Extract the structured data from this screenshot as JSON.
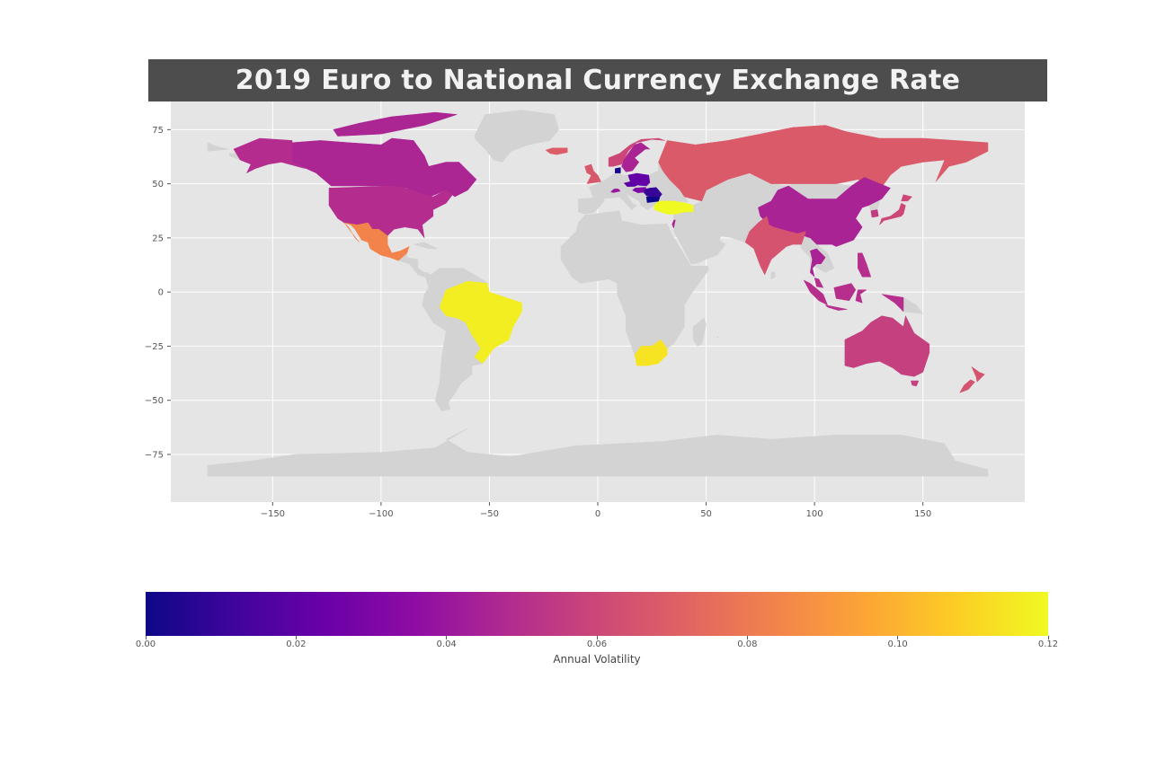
{
  "title": "2019 Euro to National Currency Exchange Rate",
  "colors": {
    "panel_bg": "#e5e5e5",
    "land_no_data": "#d3d3d3",
    "grid": "#ffffff",
    "title_bg": "#4d4d4d",
    "title_fg": "#f2f2f2"
  },
  "map": {
    "projection": "plate-carree",
    "xlim": [
      -197,
      197
    ],
    "ylim": [
      -97,
      88
    ],
    "xticks": [
      -150,
      -100,
      -50,
      0,
      50,
      100,
      150
    ],
    "yticks": [
      75,
      50,
      25,
      0,
      -25,
      -50,
      -75
    ],
    "xtick_labels": [
      "−150",
      "−100",
      "−50",
      "0",
      "50",
      "100",
      "150"
    ],
    "ytick_labels": [
      "75",
      "50",
      "25",
      "0",
      "−25",
      "−50",
      "−75"
    ],
    "grid": true
  },
  "colorbar": {
    "colormap": "plasma",
    "colorbar_orientation": "horizontal",
    "range": [
      0,
      0.12
    ],
    "ticks": [
      0,
      0.02,
      0.04,
      0.06,
      0.08,
      0.1,
      0.12
    ],
    "tick_labels": [
      "0.00",
      "0.02",
      "0.04",
      "0.06",
      "0.08",
      "0.10",
      "0.12"
    ],
    "label": "Annual Volatility"
  },
  "chart_data": {
    "type": "heatmap",
    "variable": "Annual Volatility",
    "regions": [
      {
        "region": "Canada",
        "value": 0.046
      },
      {
        "region": "United States",
        "value": 0.049
      },
      {
        "region": "Mexico",
        "value": 0.084
      },
      {
        "region": "Brazil",
        "value": 0.117
      },
      {
        "region": "South Africa",
        "value": 0.114
      },
      {
        "region": "Turkey",
        "value": 0.12
      },
      {
        "region": "Russia",
        "value": 0.068
      },
      {
        "region": "China",
        "value": 0.045
      },
      {
        "region": "India",
        "value": 0.065
      },
      {
        "region": "Japan",
        "value": 0.06
      },
      {
        "region": "South Korea",
        "value": 0.055
      },
      {
        "region": "Indonesia",
        "value": 0.05
      },
      {
        "region": "Malaysia",
        "value": 0.05
      },
      {
        "region": "Thailand",
        "value": 0.045
      },
      {
        "region": "Philippines",
        "value": 0.05
      },
      {
        "region": "Australia",
        "value": 0.057
      },
      {
        "region": "New Zealand",
        "value": 0.065
      },
      {
        "region": "United Kingdom",
        "value": 0.067
      },
      {
        "region": "Iceland",
        "value": 0.069
      },
      {
        "region": "Norway",
        "value": 0.06
      },
      {
        "region": "Sweden",
        "value": 0.045
      },
      {
        "region": "Denmark",
        "value": 0.002
      },
      {
        "region": "Poland",
        "value": 0.022
      },
      {
        "region": "Czechia",
        "value": 0.02
      },
      {
        "region": "Hungary",
        "value": 0.03
      },
      {
        "region": "Romania",
        "value": 0.01
      },
      {
        "region": "Bulgaria",
        "value": 0.0
      },
      {
        "region": "Switzerland",
        "value": 0.04
      },
      {
        "region": "Israel",
        "value": 0.045
      }
    ]
  }
}
